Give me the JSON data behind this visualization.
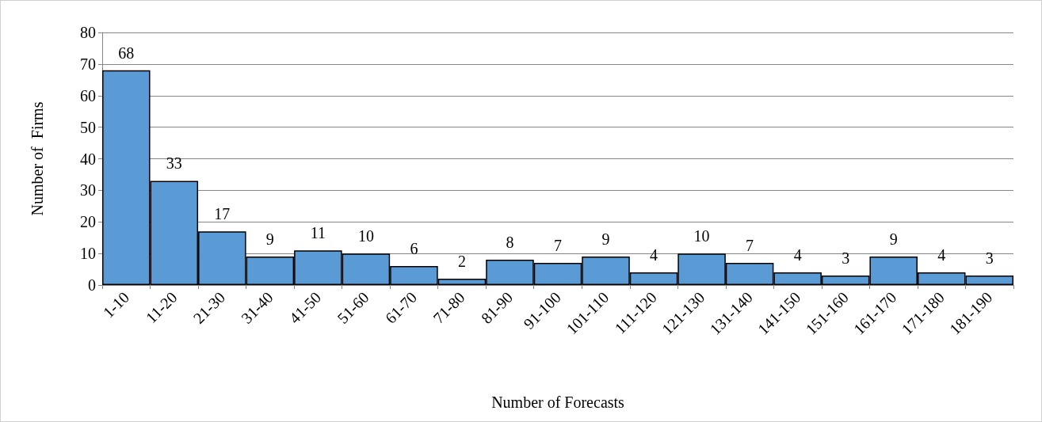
{
  "chart_data": {
    "type": "bar",
    "xlabel": "Number of Forecasts",
    "ylabel": "Number of  Firms",
    "categories": [
      "1-10",
      "11-20",
      "21-30",
      "31-40",
      "41-50",
      "51-60",
      "61-70",
      "71-80",
      "81-90",
      "91-100",
      "101-110",
      "111-120",
      "121-130",
      "131-140",
      "141-150",
      "151-160",
      "161-170",
      "171-180",
      "181-190"
    ],
    "values": [
      68,
      33,
      17,
      9,
      11,
      10,
      6,
      2,
      8,
      7,
      9,
      4,
      10,
      7,
      4,
      3,
      9,
      4,
      3
    ],
    "color": "#5b9bd5",
    "ylim": [
      0,
      80
    ],
    "yticks": [
      0,
      10,
      20,
      30,
      40,
      50,
      60,
      70,
      80
    ],
    "grid": "y",
    "data_labels": true
  }
}
